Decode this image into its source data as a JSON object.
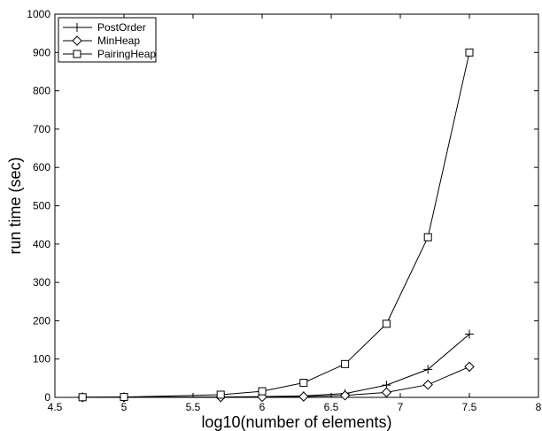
{
  "chart_data": {
    "type": "line",
    "title": "",
    "xlabel": "log10(number of elements)",
    "ylabel": "run time (sec)",
    "xlim": [
      4.5,
      8
    ],
    "ylim": [
      0,
      1000
    ],
    "xticks": [
      "4.5",
      "5",
      "5.5",
      "6",
      "6.5",
      "7",
      "7.5",
      "8"
    ],
    "yticks": [
      "0",
      "100",
      "200",
      "300",
      "400",
      "500",
      "600",
      "700",
      "800",
      "900",
      "1000"
    ],
    "grid": false,
    "legend": "top-left",
    "series": [
      {
        "name": "PostOrder",
        "marker": "plus",
        "x": [
          4.7,
          5.0,
          5.7,
          6.0,
          6.3,
          6.6,
          6.9,
          7.2,
          7.5
        ],
        "y": [
          0.2,
          0.5,
          1,
          2,
          4,
          10,
          32,
          73,
          165
        ]
      },
      {
        "name": "MinHeap",
        "marker": "diamond",
        "x": [
          4.7,
          5.0,
          5.7,
          6.0,
          6.3,
          6.6,
          6.9,
          7.2,
          7.5
        ],
        "y": [
          0.1,
          0.2,
          0.5,
          1,
          2,
          5,
          13,
          33,
          80
        ]
      },
      {
        "name": "PairingHeap",
        "marker": "square",
        "x": [
          4.7,
          5.0,
          5.7,
          6.0,
          6.3,
          6.6,
          6.9,
          7.2,
          7.5
        ],
        "y": [
          0.5,
          1,
          7,
          16,
          38,
          87,
          192,
          418,
          900
        ]
      }
    ]
  }
}
